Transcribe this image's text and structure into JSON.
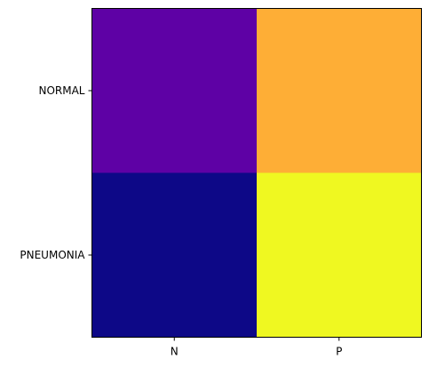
{
  "chart_data": {
    "type": "heatmap",
    "title": "",
    "xlabel": "",
    "ylabel": "",
    "colormap": "plasma",
    "x_categories": [
      "N",
      "P"
    ],
    "y_categories": [
      "NORMAL",
      "PNEUMONIA"
    ],
    "cells": [
      {
        "row": "NORMAL",
        "col": "N",
        "color": "#5e01a5"
      },
      {
        "row": "NORMAL",
        "col": "P",
        "color": "#feae36"
      },
      {
        "row": "PNEUMONIA",
        "col": "N",
        "color": "#0d0887"
      },
      {
        "row": "PNEUMONIA",
        "col": "P",
        "color": "#eff821"
      }
    ],
    "grid": false,
    "legend": "none"
  }
}
